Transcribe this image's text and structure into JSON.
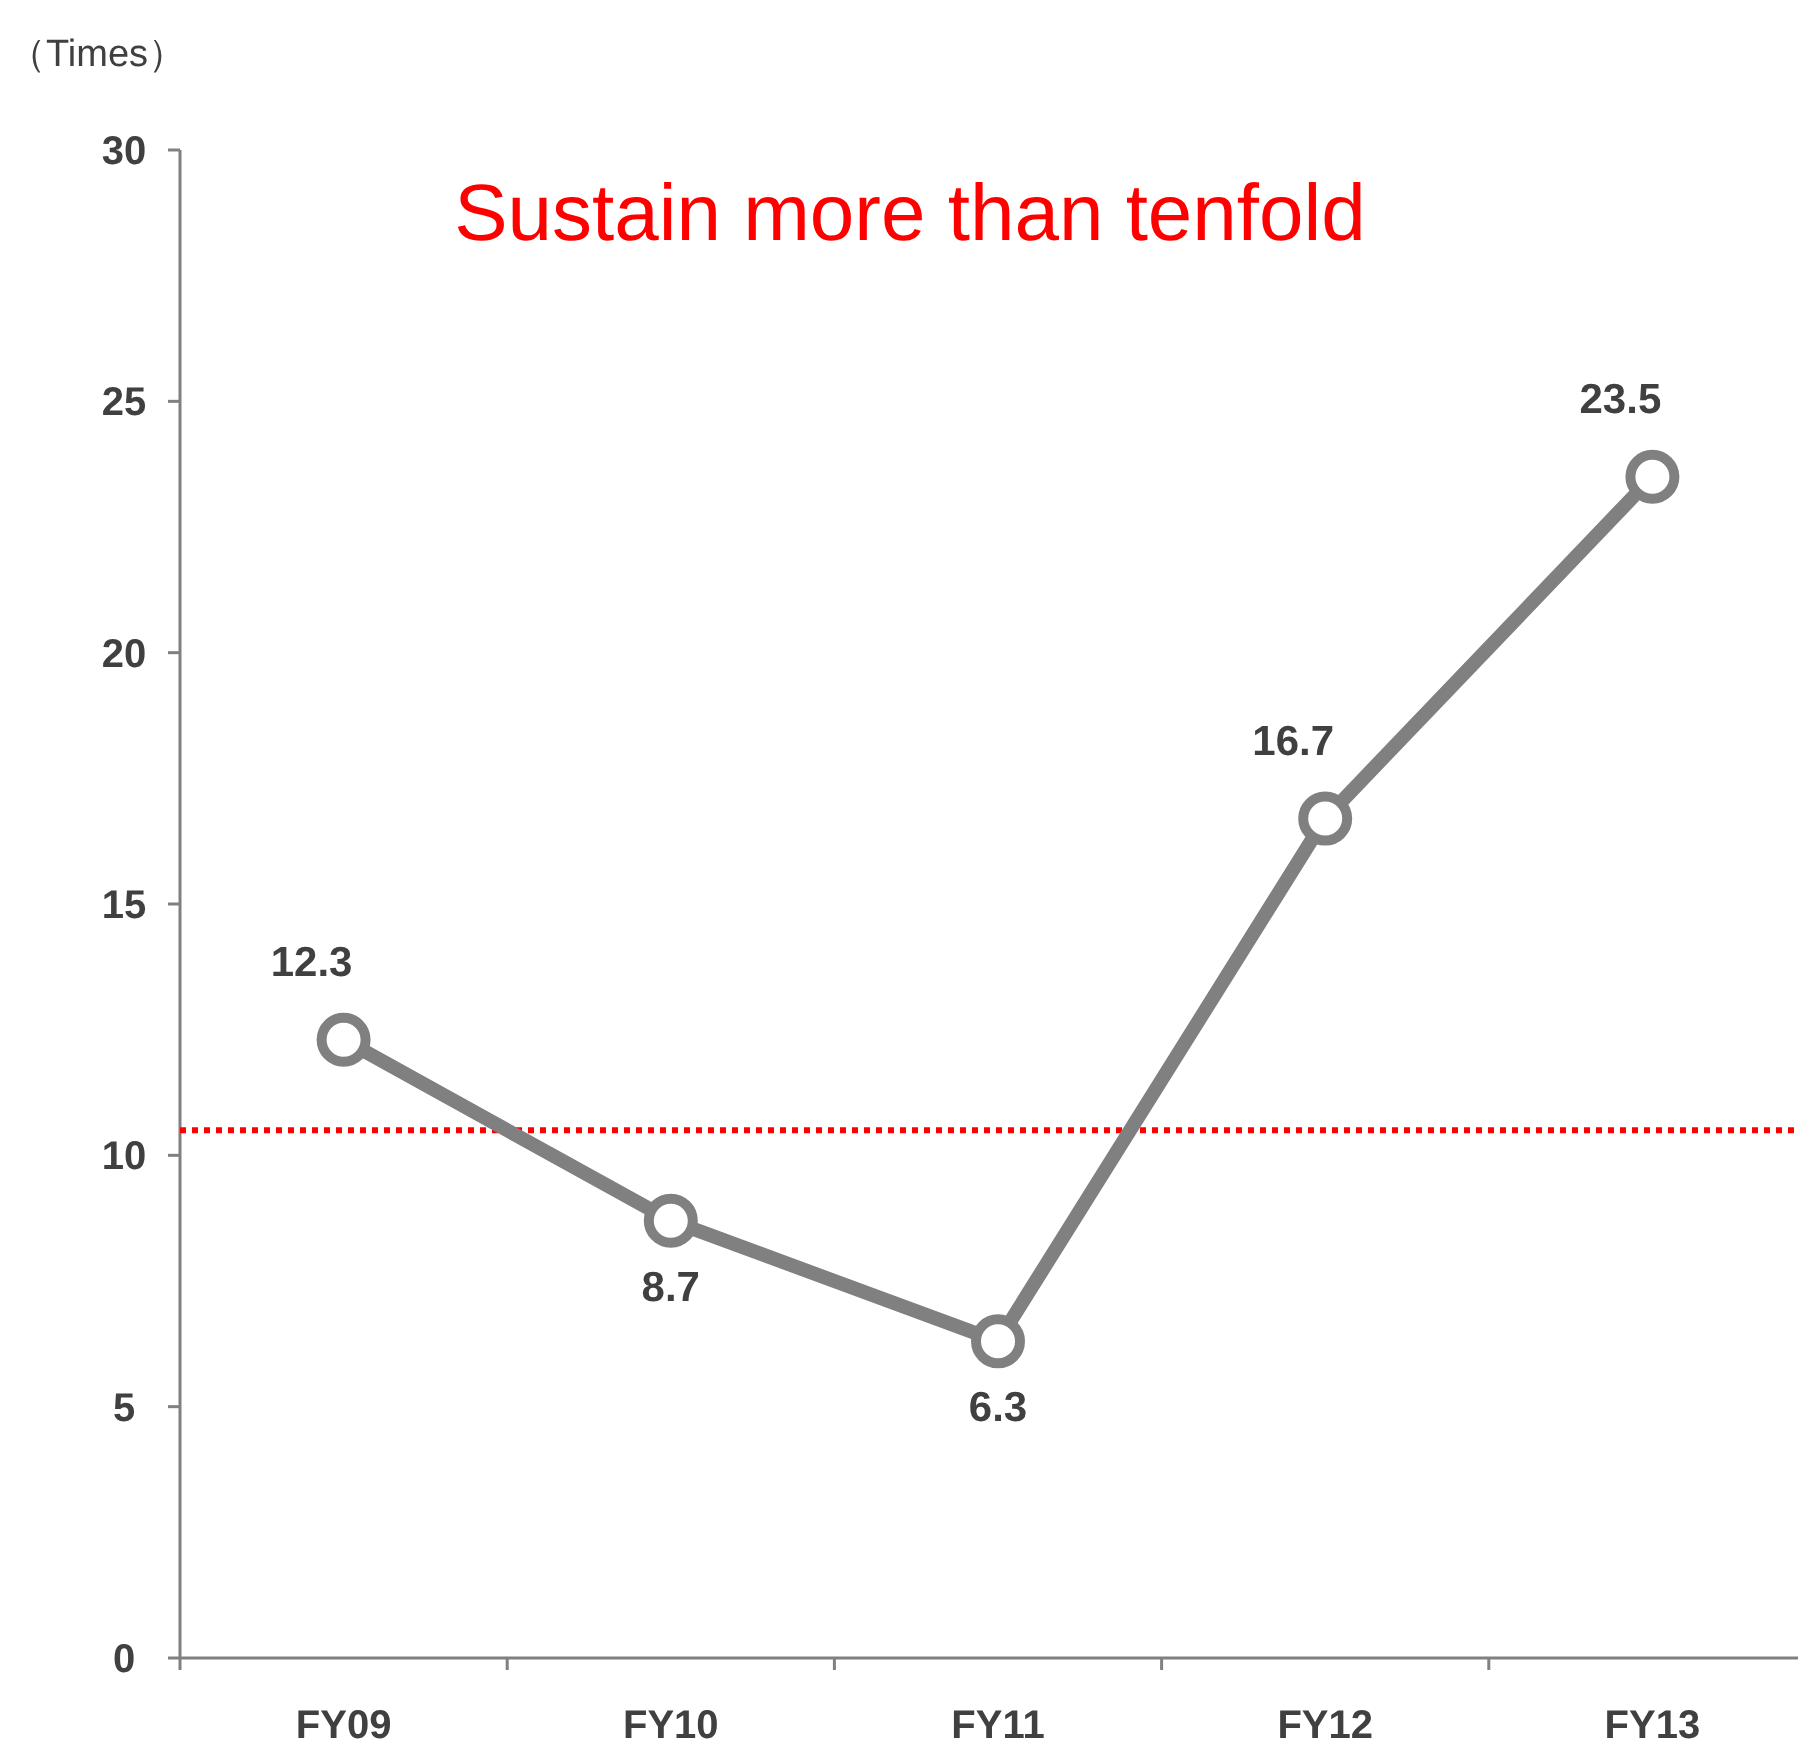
{
  "chart_data": {
    "type": "line",
    "title": "Sustain more than tenfold",
    "ylabel": "（Times）",
    "categories": [
      "FY09",
      "FY10",
      "FY11",
      "FY12",
      "FY13"
    ],
    "series": [
      {
        "color": "#808080",
        "values": [
          12.3,
          8.7,
          6.3,
          16.7,
          23.5
        ]
      }
    ],
    "ylim": [
      0,
      30
    ],
    "yticks": [
      0,
      5,
      10,
      15,
      20,
      25,
      30
    ],
    "ref_lines": [
      {
        "axis": "y",
        "value": 10.5,
        "color": "#ff0000",
        "line_style": "dotted"
      }
    ],
    "data_labels": true,
    "marker": "circle",
    "line_style": "solid",
    "grid": false
  }
}
